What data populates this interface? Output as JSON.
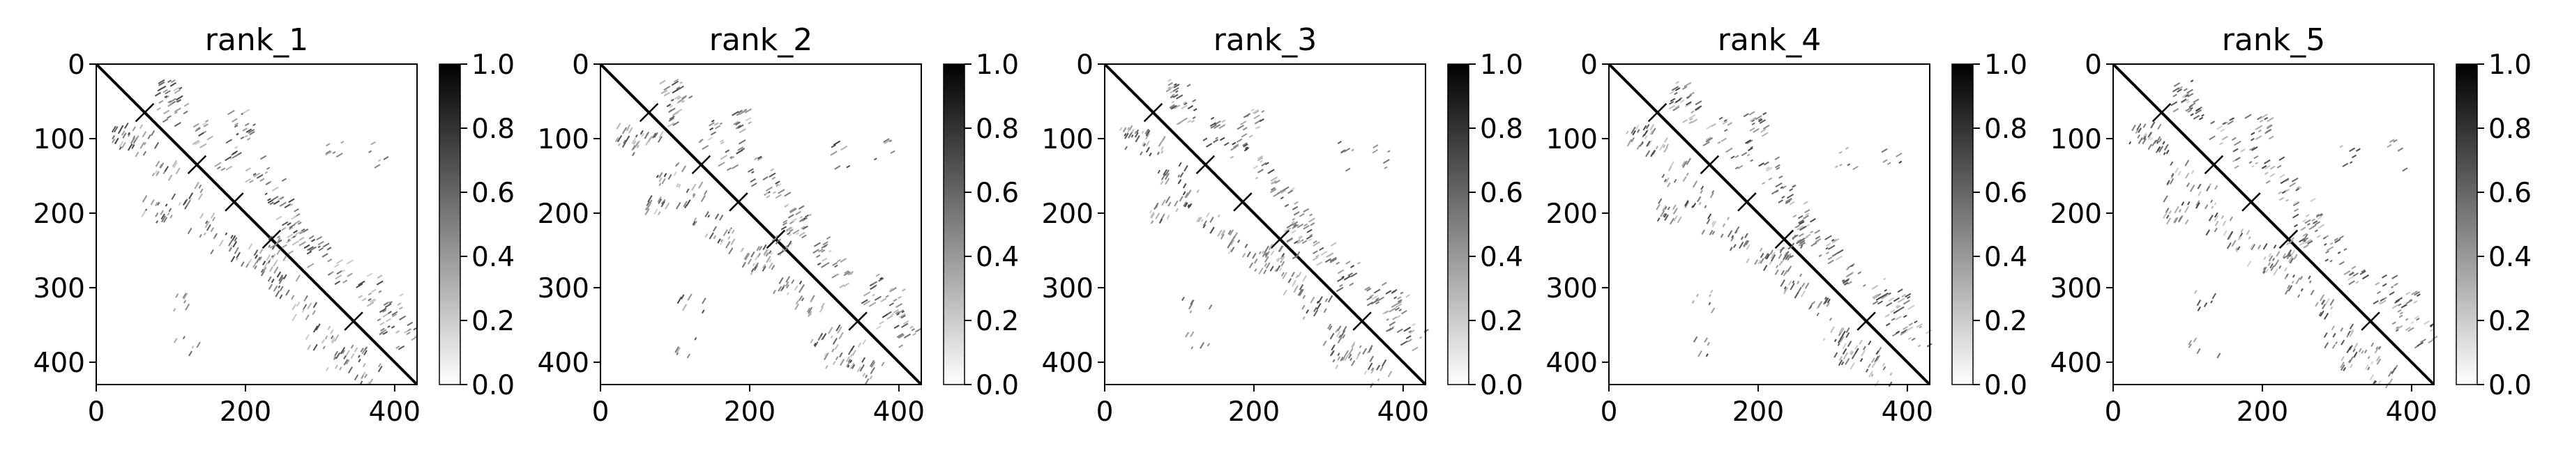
{
  "chart_data": [
    {
      "type": "heatmap",
      "title": "rank_1",
      "x_ticks": [
        0,
        200,
        400
      ],
      "y_ticks": [
        0,
        100,
        200,
        300,
        400
      ],
      "xlim": [
        0,
        430
      ],
      "ylim": [
        430,
        0
      ],
      "colorbar": {
        "ticks": [
          "0.0",
          "0.2",
          "0.4",
          "0.6",
          "0.8",
          "1.0"
        ],
        "range": [
          0.0,
          1.0
        ],
        "cmap": "Greys"
      },
      "contacts": {
        "diagonal": true,
        "crosses_at": [
          65,
          135,
          185,
          235,
          345
        ],
        "seed": 11
      }
    },
    {
      "type": "heatmap",
      "title": "rank_2",
      "x_ticks": [
        0,
        200,
        400
      ],
      "y_ticks": [
        0,
        100,
        200,
        300,
        400
      ],
      "xlim": [
        0,
        430
      ],
      "ylim": [
        430,
        0
      ],
      "colorbar": {
        "ticks": [
          "0.0",
          "0.2",
          "0.4",
          "0.6",
          "0.8",
          "1.0"
        ],
        "range": [
          0.0,
          1.0
        ],
        "cmap": "Greys"
      },
      "contacts": {
        "diagonal": true,
        "crosses_at": [
          65,
          135,
          185,
          235,
          345
        ],
        "seed": 22
      }
    },
    {
      "type": "heatmap",
      "title": "rank_3",
      "x_ticks": [
        0,
        200,
        400
      ],
      "y_ticks": [
        0,
        100,
        200,
        300,
        400
      ],
      "xlim": [
        0,
        430
      ],
      "ylim": [
        430,
        0
      ],
      "colorbar": {
        "ticks": [
          "0.0",
          "0.2",
          "0.4",
          "0.6",
          "0.8",
          "1.0"
        ],
        "range": [
          0.0,
          1.0
        ],
        "cmap": "Greys"
      },
      "contacts": {
        "diagonal": true,
        "crosses_at": [
          65,
          135,
          185,
          235,
          345
        ],
        "seed": 33
      }
    },
    {
      "type": "heatmap",
      "title": "rank_4",
      "x_ticks": [
        0,
        200,
        400
      ],
      "y_ticks": [
        0,
        100,
        200,
        300,
        400
      ],
      "xlim": [
        0,
        430
      ],
      "ylim": [
        430,
        0
      ],
      "colorbar": {
        "ticks": [
          "0.0",
          "0.2",
          "0.4",
          "0.6",
          "0.8",
          "1.0"
        ],
        "range": [
          0.0,
          1.0
        ],
        "cmap": "Greys"
      },
      "contacts": {
        "diagonal": true,
        "crosses_at": [
          65,
          135,
          185,
          235,
          345
        ],
        "seed": 44
      }
    },
    {
      "type": "heatmap",
      "title": "rank_5",
      "x_ticks": [
        0,
        200,
        400
      ],
      "y_ticks": [
        0,
        100,
        200,
        300,
        400
      ],
      "xlim": [
        0,
        430
      ],
      "ylim": [
        430,
        0
      ],
      "colorbar": {
        "ticks": [
          "0.0",
          "0.2",
          "0.4",
          "0.6",
          "0.8",
          "1.0"
        ],
        "range": [
          0.0,
          1.0
        ],
        "cmap": "Greys"
      },
      "contacts": {
        "diagonal": true,
        "crosses_at": [
          65,
          135,
          185,
          235,
          345
        ],
        "seed": 55
      }
    }
  ]
}
